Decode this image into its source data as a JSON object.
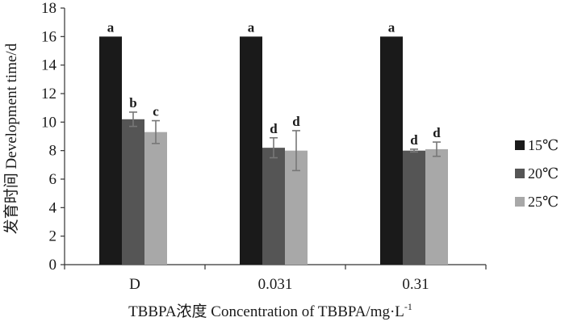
{
  "chart_data": {
    "type": "bar",
    "title": "",
    "xlabel": "TBBPA浓度 Concentration of TBBPA/mg·L",
    "xlabel_superscript": "-1",
    "ylabel": "发育时间 Development time/d",
    "ylim": [
      0,
      18
    ],
    "yticks": [
      0,
      2,
      4,
      6,
      8,
      10,
      12,
      14,
      16,
      18
    ],
    "categories": [
      "D",
      "0.031",
      "0.31"
    ],
    "legend_position": "right",
    "grid": false,
    "series": [
      {
        "name": "15℃",
        "color": "#1a1a1a",
        "values": [
          16,
          16,
          16
        ],
        "errors": [
          0,
          0,
          0
        ],
        "labels": [
          "a",
          "a",
          "a"
        ]
      },
      {
        "name": "20℃",
        "color": "#555555",
        "values": [
          10.2,
          8.2,
          8.0
        ],
        "errors": [
          0.5,
          0.7,
          0.1
        ],
        "labels": [
          "b",
          "d",
          "d"
        ]
      },
      {
        "name": "25℃",
        "color": "#a8a8a8",
        "values": [
          9.3,
          8.0,
          8.1
        ],
        "errors": [
          0.8,
          1.4,
          0.5
        ],
        "labels": [
          "c",
          "d",
          "d"
        ]
      }
    ]
  }
}
